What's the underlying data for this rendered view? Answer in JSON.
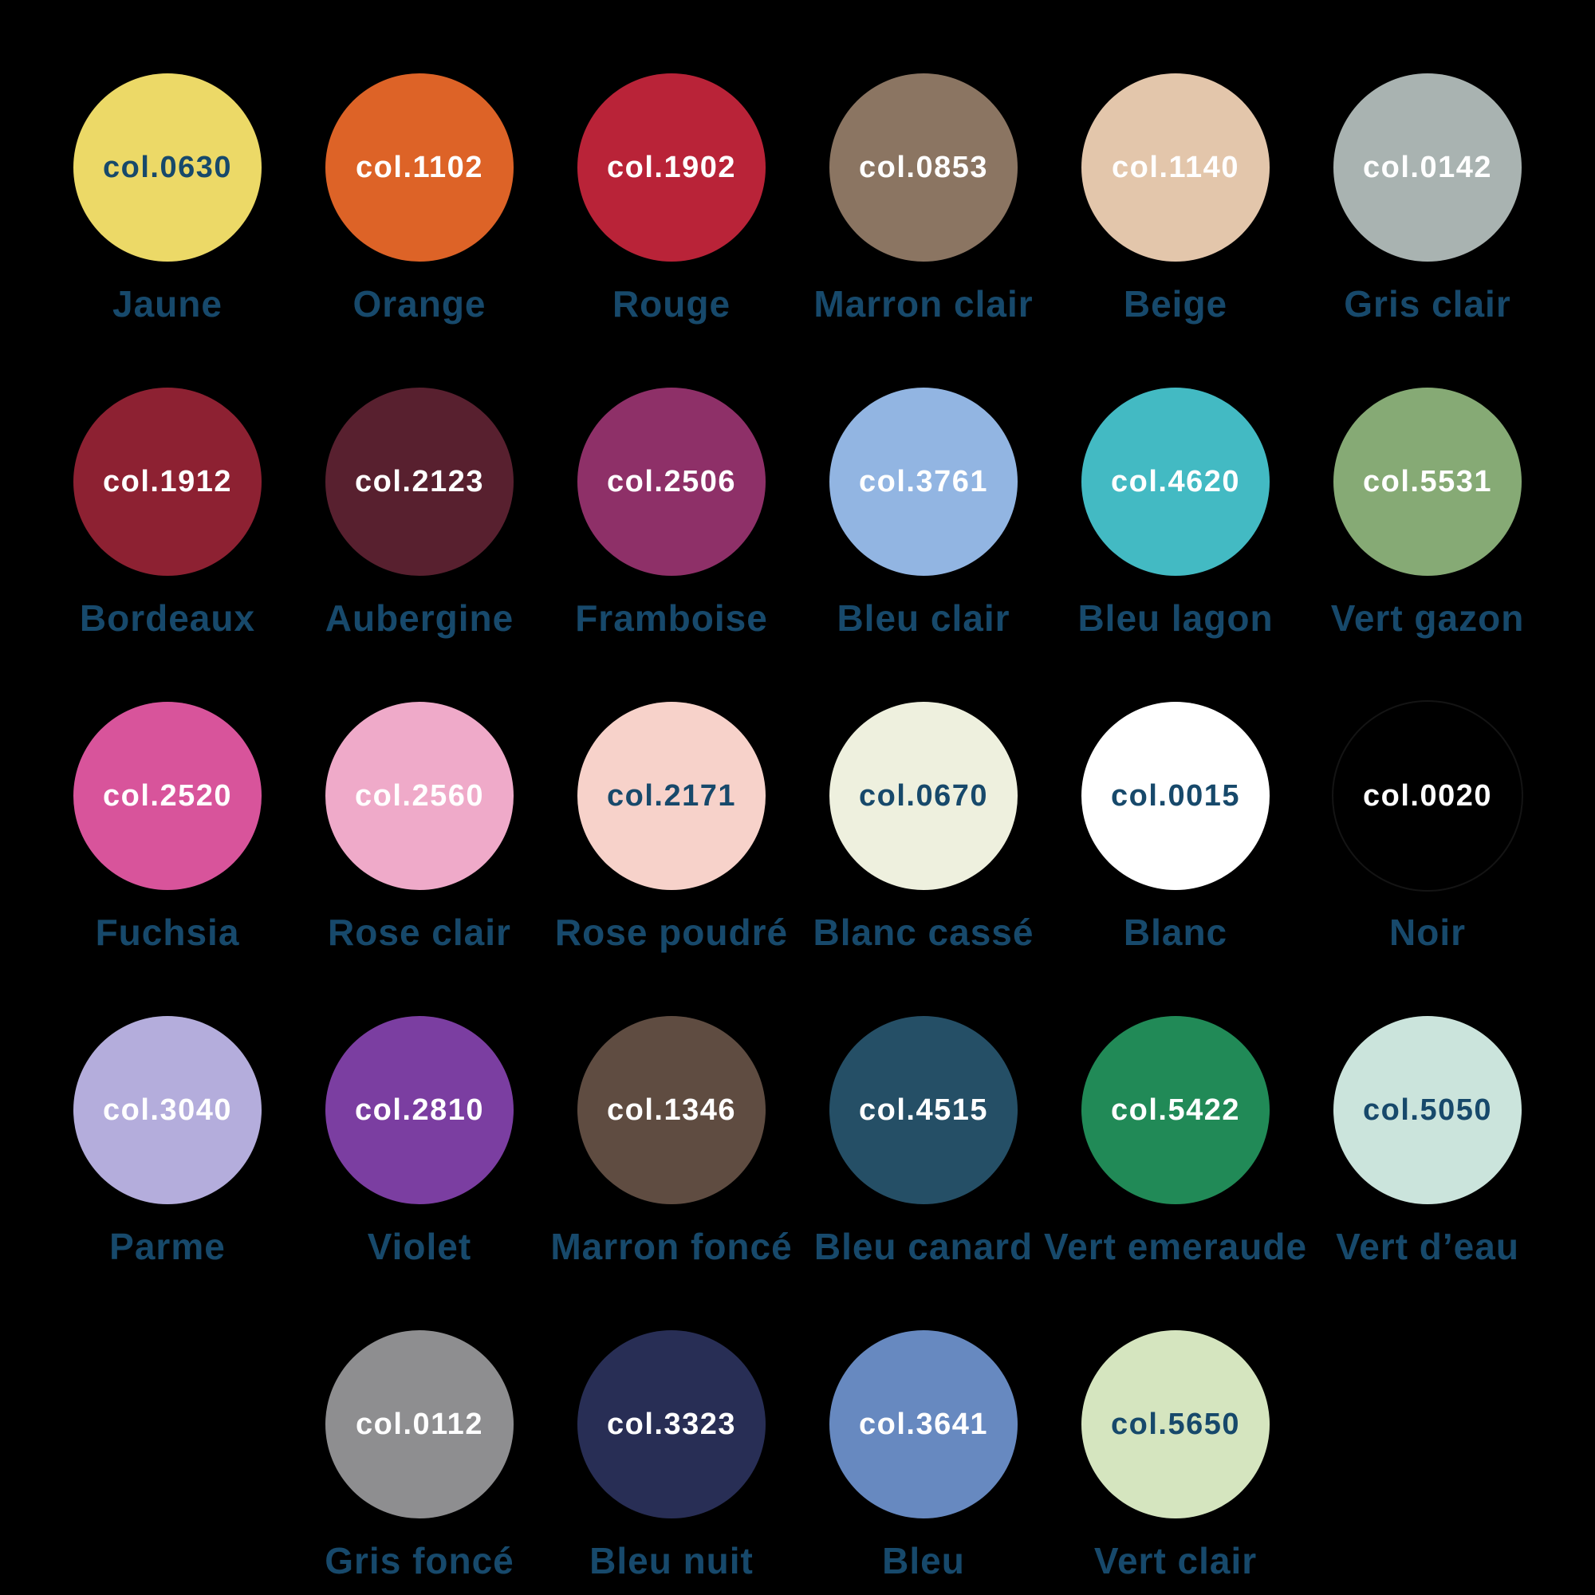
{
  "page": {
    "background": "#000000",
    "label_color": "#17496b",
    "code_light_color": "#ffffff",
    "code_dark_color": "#17496b"
  },
  "swatches": [
    {
      "code": "col.0630",
      "name": "Jaune",
      "color": "#ecd967",
      "code_color": "#17496b"
    },
    {
      "code": "col.1102",
      "name": "Orange",
      "color": "#dd6327",
      "code_color": "#ffffff"
    },
    {
      "code": "col.1902",
      "name": "Rouge",
      "color": "#b92338",
      "code_color": "#ffffff"
    },
    {
      "code": "col.0853",
      "name": "Marron clair",
      "color": "#8b7562",
      "code_color": "#ffffff"
    },
    {
      "code": "col.1140",
      "name": "Beige",
      "color": "#e3c6ab",
      "code_color": "#ffffff"
    },
    {
      "code": "col.0142",
      "name": "Gris clair",
      "color": "#a9b3b1",
      "code_color": "#ffffff"
    },
    {
      "code": "col.1912",
      "name": "Bordeaux",
      "color": "#8d2132",
      "code_color": "#ffffff"
    },
    {
      "code": "col.2123",
      "name": "Aubergine",
      "color": "#58202f",
      "code_color": "#ffffff"
    },
    {
      "code": "col.2506",
      "name": "Framboise",
      "color": "#8e3068",
      "code_color": "#ffffff"
    },
    {
      "code": "col.3761",
      "name": "Bleu clair",
      "color": "#92b5e2",
      "code_color": "#ffffff"
    },
    {
      "code": "col.4620",
      "name": "Bleu lagon",
      "color": "#43bac3",
      "code_color": "#ffffff"
    },
    {
      "code": "col.5531",
      "name": "Vert gazon",
      "color": "#86aa75",
      "code_color": "#ffffff"
    },
    {
      "code": "col.2520",
      "name": "Fuchsia",
      "color": "#d8549b",
      "code_color": "#ffffff"
    },
    {
      "code": "col.2560",
      "name": "Rose clair",
      "color": "#efaac9",
      "code_color": "#ffffff"
    },
    {
      "code": "col.2171",
      "name": "Rose poudré",
      "color": "#f7d2ca",
      "code_color": "#17496b"
    },
    {
      "code": "col.0670",
      "name": "Blanc cassé",
      "color": "#eef0de",
      "code_color": "#17496b"
    },
    {
      "code": "col.0015",
      "name": "Blanc",
      "color": "#ffffff",
      "code_color": "#17496b"
    },
    {
      "code": "col.0020",
      "name": "Noir",
      "color": "#000000",
      "code_color": "#ffffff"
    },
    {
      "code": "col.3040",
      "name": "Parme",
      "color": "#b4addc",
      "code_color": "#ffffff"
    },
    {
      "code": "col.2810",
      "name": "Violet",
      "color": "#7b3ea1",
      "code_color": "#ffffff"
    },
    {
      "code": "col.1346",
      "name": "Marron foncé",
      "color": "#5f4c41",
      "code_color": "#ffffff"
    },
    {
      "code": "col.4515",
      "name": "Bleu canard",
      "color": "#254f66",
      "code_color": "#ffffff"
    },
    {
      "code": "col.5422",
      "name": "Vert emeraude",
      "color": "#218a57",
      "code_color": "#ffffff"
    },
    {
      "code": "col.5050",
      "name": "Vert d’eau",
      "color": "#cbe4dc",
      "code_color": "#17496b"
    },
    {
      "code": "col.0112",
      "name": "Gris foncé",
      "color": "#8e8e90",
      "code_color": "#ffffff"
    },
    {
      "code": "col.3323",
      "name": "Bleu nuit",
      "color": "#282e55",
      "code_color": "#ffffff"
    },
    {
      "code": "col.3641",
      "name": "Bleu",
      "color": "#6789c0",
      "code_color": "#ffffff"
    },
    {
      "code": "col.5650",
      "name": "Vert clair",
      "color": "#d5e5bf",
      "code_color": "#17496b"
    }
  ],
  "rows": [
    [
      0,
      1,
      2,
      3,
      4,
      5
    ],
    [
      6,
      7,
      8,
      9,
      10,
      11
    ],
    [
      12,
      13,
      14,
      15,
      16,
      17
    ],
    [
      18,
      19,
      20,
      21,
      22,
      23
    ],
    [
      24,
      25,
      26,
      27
    ]
  ]
}
